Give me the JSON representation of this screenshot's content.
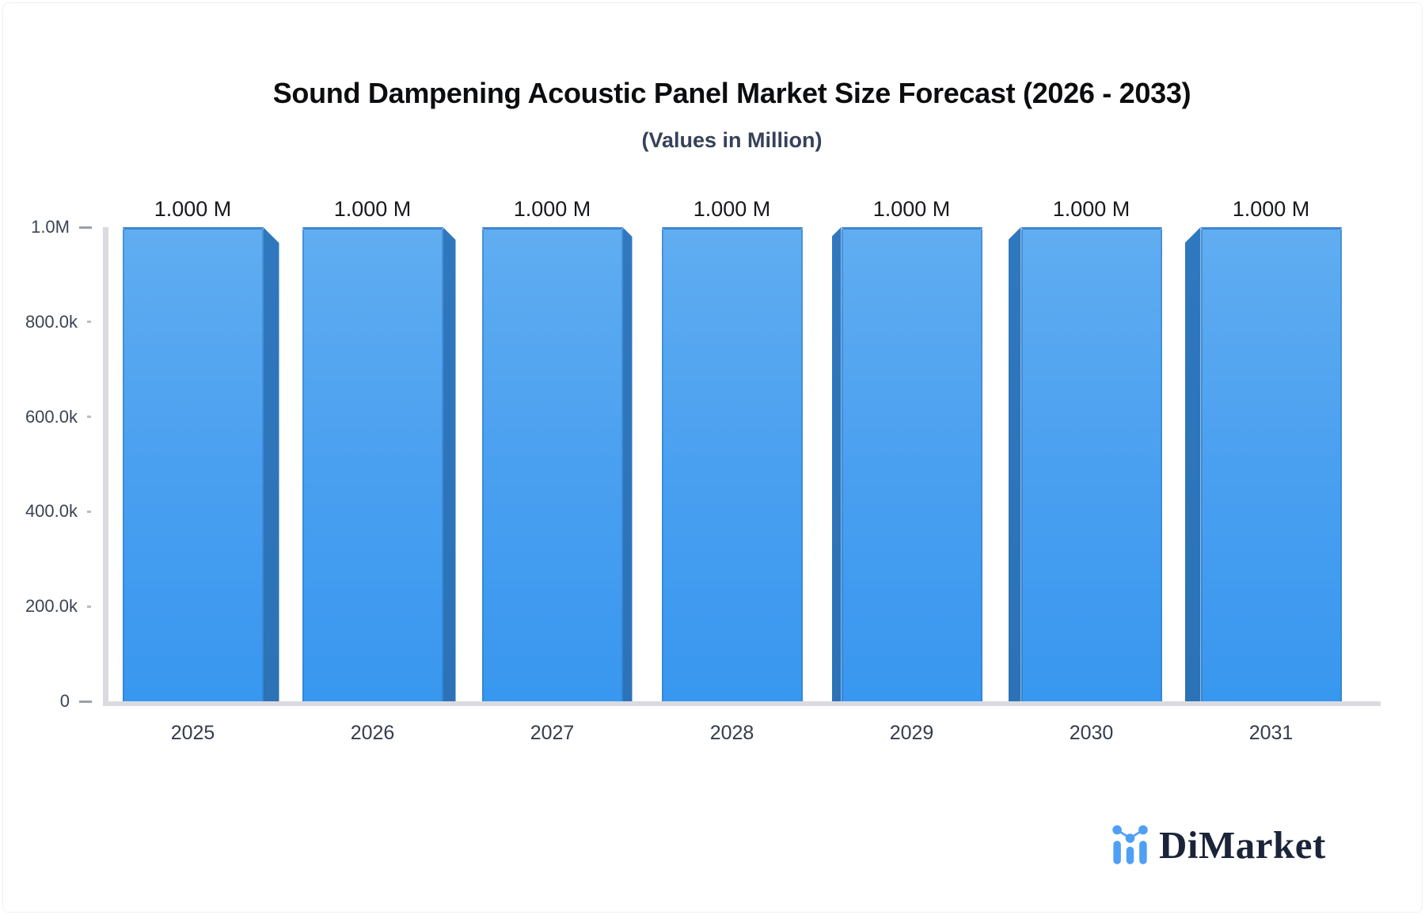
{
  "header": {
    "title": "Sound Dampening Acoustic Panel Market Size Forecast (2026 - 2033)",
    "subtitle": "(Values in Million)"
  },
  "chart_data": {
    "type": "bar",
    "title": "Sound Dampening Acoustic Panel Market Size Forecast (2026 - 2033)",
    "subtitle": "(Values in Million)",
    "categories": [
      "2025",
      "2026",
      "2027",
      "2028",
      "2029",
      "2030",
      "2031"
    ],
    "values": [
      1000000,
      1000000,
      1000000,
      1000000,
      1000000,
      1000000,
      1000000
    ],
    "value_labels": [
      "1.000 M",
      "1.000 M",
      "1.000 M",
      "1.000 M",
      "1.000 M",
      "1.000 M",
      "1.000 M"
    ],
    "unit": "Million",
    "xlabel": "",
    "ylabel": "",
    "ylim": [
      0,
      1000000
    ],
    "yticks": [
      {
        "value": 1000000,
        "label": "1.0M",
        "major": true
      },
      {
        "value": 800000,
        "label": "800.0k",
        "major": false
      },
      {
        "value": 600000,
        "label": "600.0k",
        "major": false
      },
      {
        "value": 400000,
        "label": "400.0k",
        "major": false
      },
      {
        "value": 200000,
        "label": "200.0k",
        "major": false
      },
      {
        "value": 0,
        "label": "0",
        "major": true
      }
    ],
    "grid": false,
    "legend": null,
    "style": {
      "bar_front_top": "#60adf1",
      "bar_front_bottom": "#3897ef",
      "bar_side": "#2b72b6",
      "bar_edge": "#3f86cd",
      "axis_line": "#d9dbe0",
      "perspective_3d": "center"
    }
  },
  "footer": {
    "brand": "DiMarket",
    "brand_color": "#1b2438",
    "logo_icon": "mini-bar-chart-icon",
    "icon_color": "#4fa0f4"
  }
}
